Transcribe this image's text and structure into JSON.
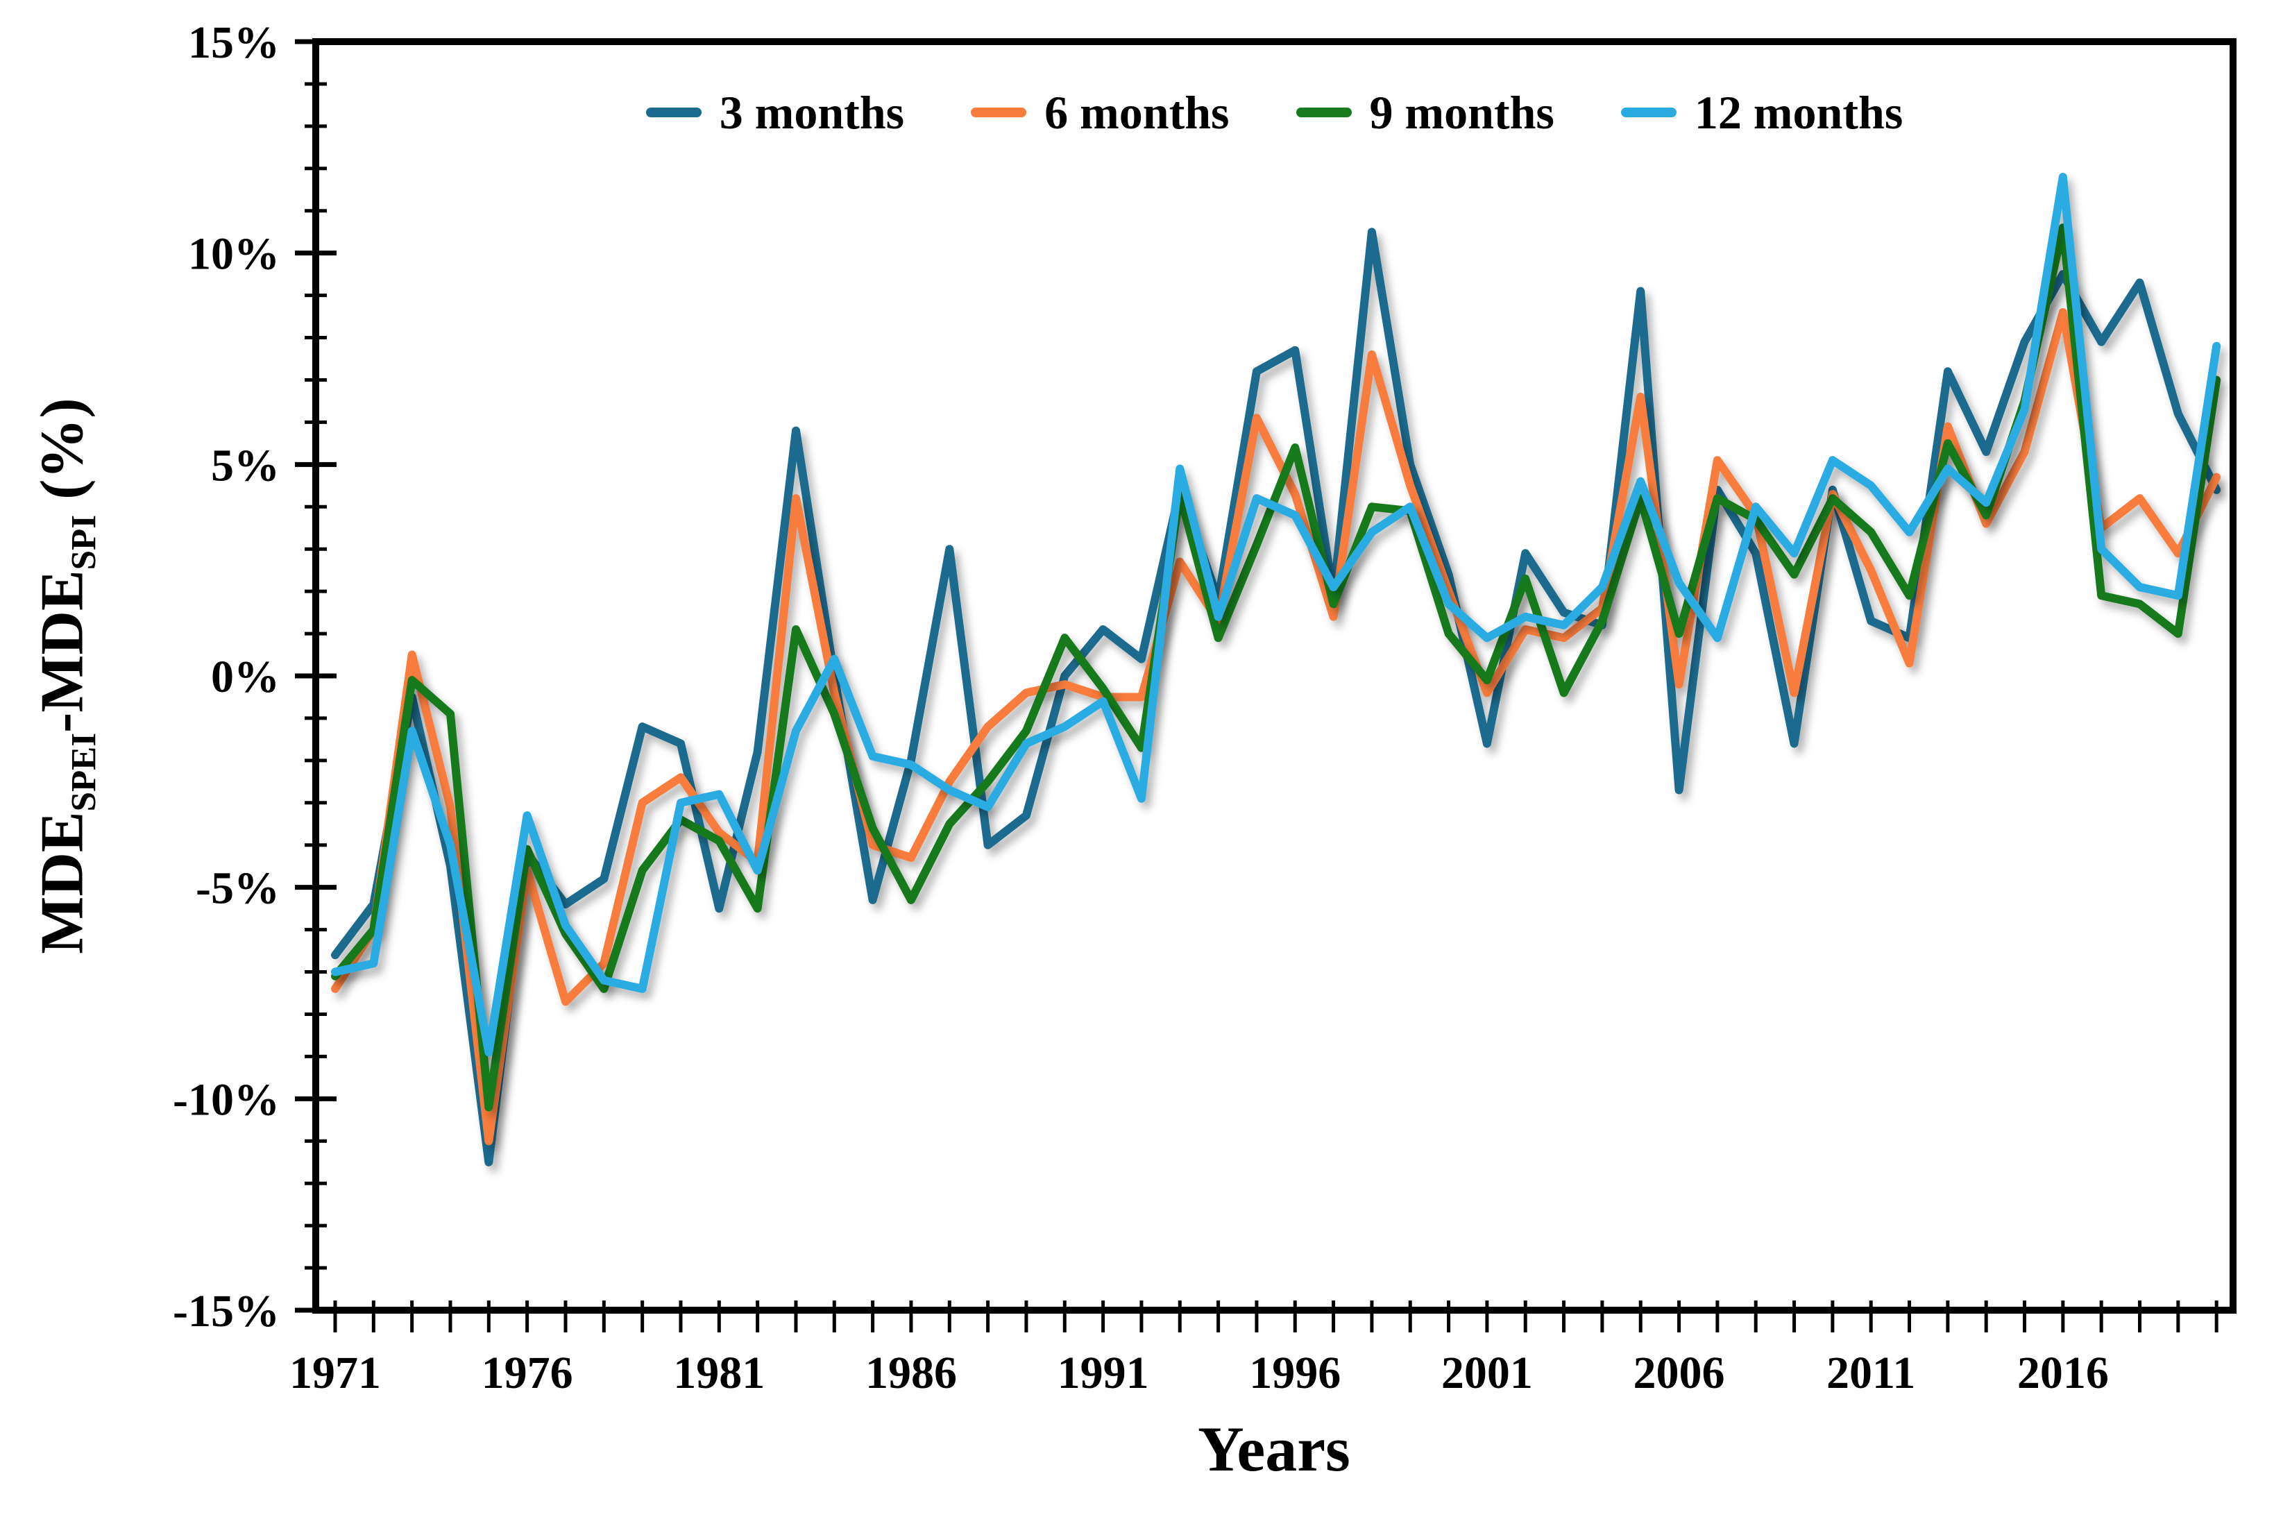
{
  "figure_type": "line chart",
  "chart_data": {
    "type": "line",
    "title": "",
    "xlabel": "Years",
    "ylabel": "MDE_SPEI-MDE_SPI (%)",
    "ylabel_parts": [
      {
        "text": "MDE"
      },
      {
        "sub": "SPEI"
      },
      {
        "text": "-MDE"
      },
      {
        "sub": "SPI"
      },
      {
        "text": " (%)"
      }
    ],
    "x": [
      1971,
      1972,
      1973,
      1974,
      1975,
      1976,
      1977,
      1978,
      1979,
      1980,
      1981,
      1982,
      1983,
      1984,
      1985,
      1986,
      1987,
      1988,
      1989,
      1990,
      1991,
      1992,
      1993,
      1994,
      1995,
      1996,
      1997,
      1998,
      1999,
      2000,
      2001,
      2002,
      2003,
      2004,
      2005,
      2006,
      2007,
      2008,
      2009,
      2010,
      2011,
      2012,
      2013,
      2014,
      2015,
      2016,
      2017,
      2018,
      2019,
      2020
    ],
    "ylim": [
      -15,
      15
    ],
    "yticks": [
      {
        "value": 15,
        "label": "15%"
      },
      {
        "value": 10,
        "label": "10%"
      },
      {
        "value": 5,
        "label": "5%"
      },
      {
        "value": 0,
        "label": "0%"
      },
      {
        "value": -5,
        "label": "-5%"
      },
      {
        "value": -10,
        "label": "-10%"
      },
      {
        "value": -15,
        "label": "-15%"
      }
    ],
    "xticks": [
      1971,
      1976,
      1981,
      1986,
      1991,
      1996,
      2001,
      2006,
      2011,
      2016
    ],
    "grid": false,
    "legend_position": "top-center",
    "series": [
      {
        "name": "3 months",
        "color": "#1a6b8d",
        "values": [
          -6.6,
          -5.4,
          -0.5,
          -4.5,
          -11.5,
          -4.2,
          -5.4,
          -4.8,
          -1.2,
          -1.6,
          -5.5,
          -1.8,
          5.8,
          0.0,
          -5.3,
          -2.0,
          3.0,
          -4.0,
          -3.3,
          0.0,
          1.1,
          0.4,
          4.4,
          1.8,
          7.2,
          7.7,
          1.9,
          10.5,
          5.0,
          2.4,
          -1.6,
          2.9,
          1.5,
          1.2,
          9.1,
          -2.7,
          4.4,
          2.9,
          -1.6,
          4.4,
          1.3,
          0.9,
          7.2,
          5.3,
          7.9,
          9.5,
          7.9,
          9.3,
          6.2,
          4.4
        ]
      },
      {
        "name": "6 months",
        "color": "#f87c3c",
        "values": [
          -7.4,
          -6.0,
          0.5,
          -3.1,
          -11.0,
          -4.6,
          -7.7,
          -6.8,
          -3.0,
          -2.4,
          -3.7,
          -4.4,
          4.2,
          -0.4,
          -4.0,
          -4.3,
          -2.5,
          -1.2,
          -0.4,
          -0.2,
          -0.5,
          -0.5,
          2.7,
          1.3,
          6.1,
          4.3,
          1.4,
          7.6,
          4.5,
          2.0,
          -0.4,
          1.1,
          0.9,
          1.6,
          6.6,
          -0.2,
          5.1,
          3.8,
          -0.4,
          4.3,
          2.5,
          0.3,
          5.9,
          3.6,
          5.3,
          8.6,
          3.5,
          4.2,
          2.9,
          4.7
        ]
      },
      {
        "name": "9 months",
        "color": "#177a1e",
        "values": [
          -7.1,
          -6.0,
          -0.1,
          -0.9,
          -10.2,
          -4.1,
          -6.1,
          -7.4,
          -4.6,
          -3.4,
          -3.9,
          -5.5,
          1.1,
          -0.9,
          -3.6,
          -5.3,
          -3.5,
          -2.5,
          -1.3,
          0.9,
          -0.3,
          -1.7,
          4.3,
          0.9,
          3.1,
          5.4,
          1.7,
          4.0,
          3.9,
          1.0,
          -0.1,
          2.3,
          -0.4,
          1.3,
          4.2,
          1.0,
          4.2,
          3.7,
          2.4,
          4.2,
          3.4,
          1.9,
          5.5,
          3.8,
          6.5,
          10.6,
          1.9,
          1.7,
          1.0,
          7.0
        ]
      },
      {
        "name": "12 months",
        "color": "#29abe2",
        "values": [
          -7.0,
          -6.8,
          -1.3,
          -4.0,
          -8.9,
          -3.3,
          -5.9,
          -7.2,
          -7.4,
          -3.0,
          -2.8,
          -4.6,
          -1.3,
          0.4,
          -1.9,
          -2.1,
          -2.7,
          -3.1,
          -1.6,
          -1.2,
          -0.6,
          -2.9,
          4.9,
          1.4,
          4.2,
          3.8,
          2.1,
          3.4,
          4.0,
          1.7,
          0.9,
          1.4,
          1.2,
          2.1,
          4.6,
          2.2,
          0.9,
          4.0,
          2.9,
          5.1,
          4.5,
          3.4,
          4.9,
          4.1,
          6.3,
          11.8,
          3.0,
          2.1,
          1.9,
          7.8
        ]
      }
    ]
  }
}
